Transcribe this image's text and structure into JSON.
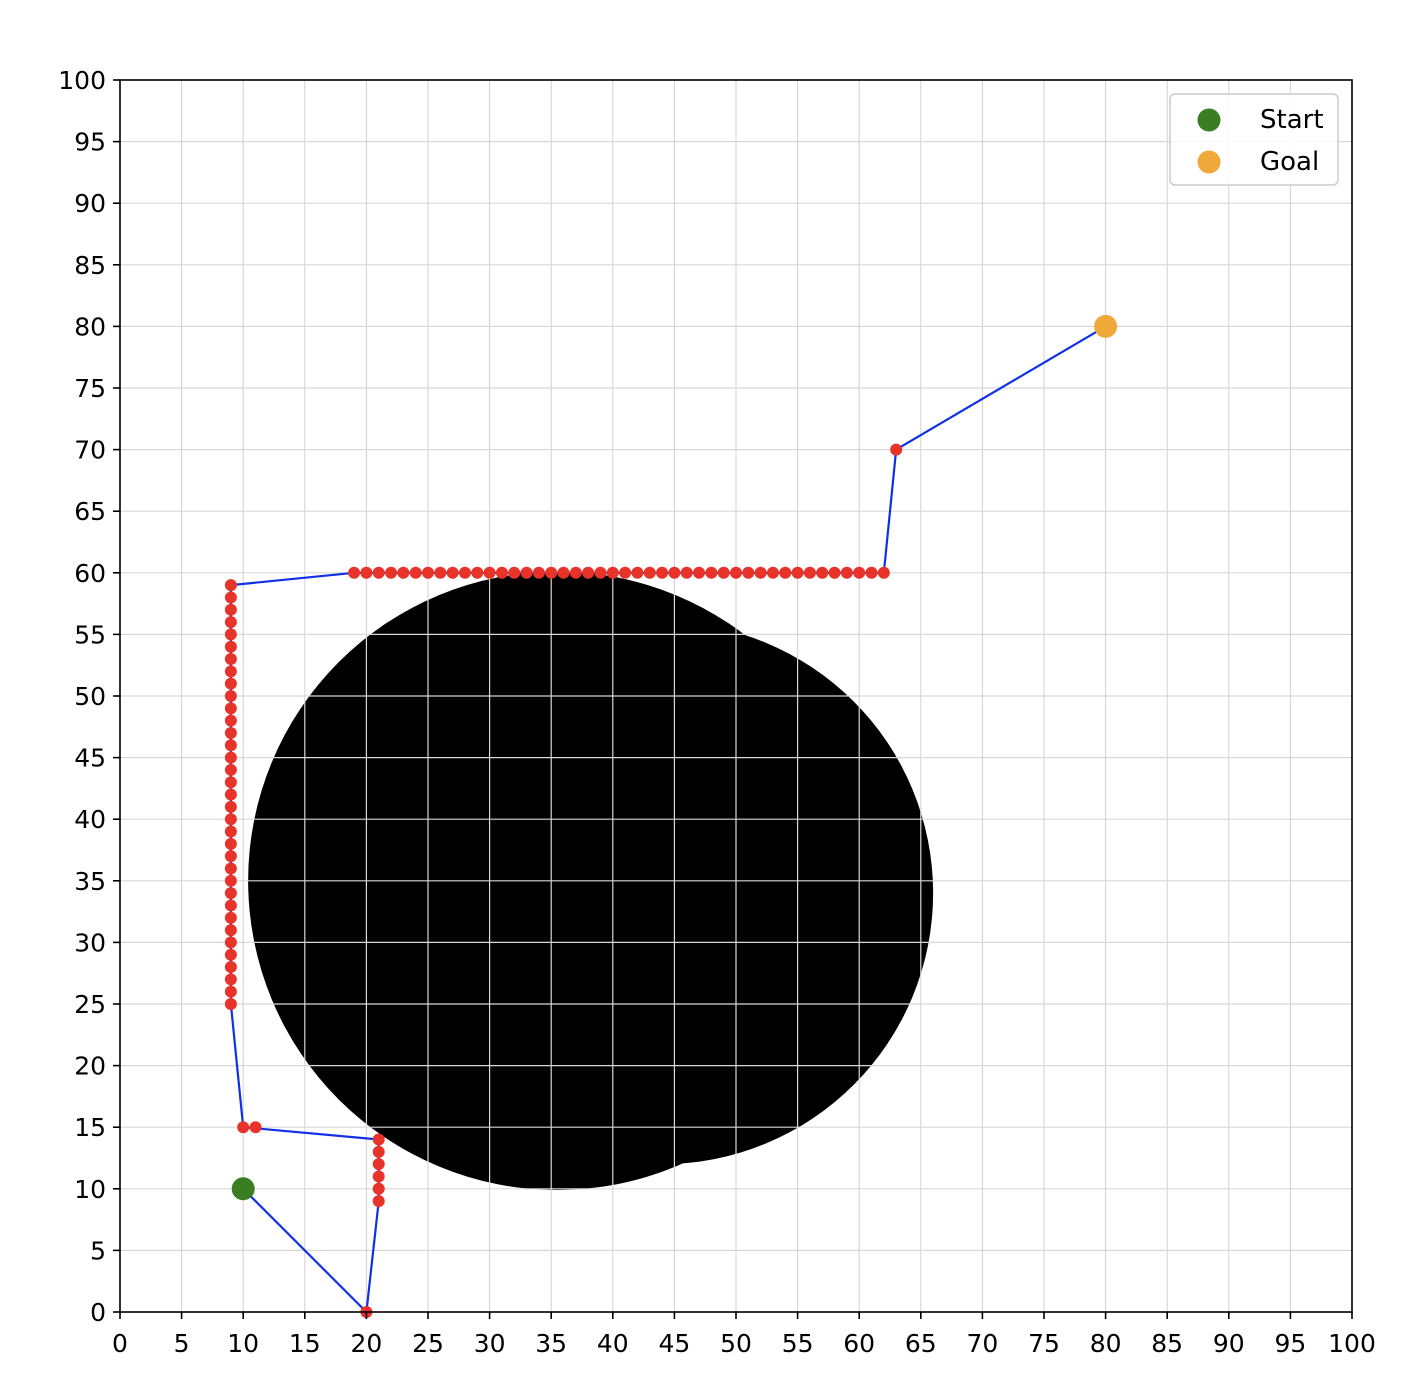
{
  "chart_data": {
    "type": "scatter",
    "title": "",
    "xlabel": "",
    "ylabel": "",
    "xlim": [
      0,
      100
    ],
    "ylim": [
      0,
      100
    ],
    "xticks": [
      0,
      5,
      10,
      15,
      20,
      25,
      30,
      35,
      40,
      45,
      50,
      55,
      60,
      65,
      70,
      75,
      80,
      85,
      90,
      95,
      100
    ],
    "yticks": [
      0,
      5,
      10,
      15,
      20,
      25,
      30,
      35,
      40,
      45,
      50,
      55,
      60,
      65,
      70,
      75,
      80,
      85,
      90,
      95,
      100
    ],
    "grid": true,
    "legend_position": "top-right",
    "obstacles": [
      {
        "cx": 35.5,
        "cy": 35,
        "r": 25.1
      },
      {
        "cx": 44,
        "cy": 34,
        "r": 22
      }
    ],
    "path": {
      "color": "#1030e8",
      "points": [
        [
          10,
          10
        ],
        [
          20,
          0
        ],
        [
          21,
          9
        ],
        [
          21,
          14
        ],
        [
          10,
          15
        ],
        [
          9,
          25
        ],
        [
          9,
          59
        ],
        [
          19,
          60
        ],
        [
          62,
          60
        ],
        [
          63,
          70
        ],
        [
          80,
          80
        ]
      ]
    },
    "waypoint_groups": [
      {
        "x_range": [
          10,
          11
        ],
        "y": 15
      },
      {
        "x": 21,
        "y_range": [
          9,
          14
        ]
      },
      {
        "x": 9,
        "y_range": [
          25,
          59
        ]
      },
      {
        "x_range": [
          19,
          62
        ],
        "y": 60
      },
      {
        "x": 20,
        "y": 0
      },
      {
        "x": 63,
        "y": 70
      }
    ],
    "waypoint_color": "#e8332a",
    "series": [
      {
        "name": "Start",
        "x": [
          10
        ],
        "y": [
          10
        ],
        "color": "#3a7d22"
      },
      {
        "name": "Goal",
        "x": [
          80
        ],
        "y": [
          80
        ],
        "color": "#f0a83a"
      }
    ]
  }
}
